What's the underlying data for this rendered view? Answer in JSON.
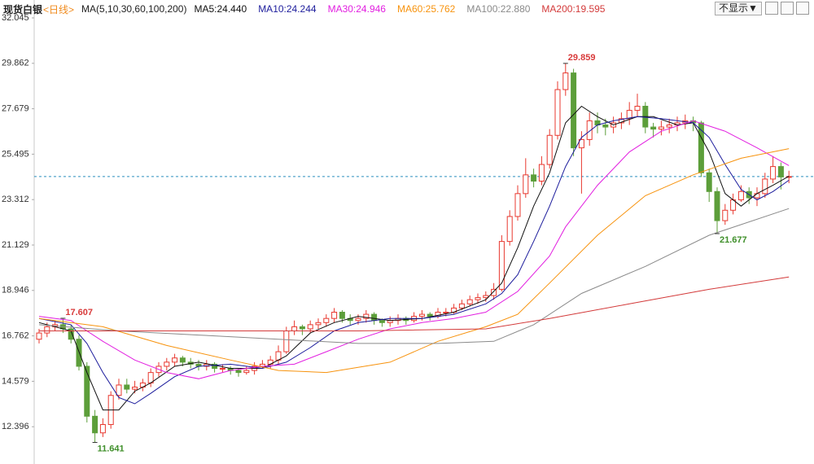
{
  "chart_data": {
    "type": "candlestick",
    "title": "现货白银",
    "period": "<日线>",
    "ma_label": "MA(5,10,30,60,100,200)",
    "button": "不显示▼",
    "ylim": [
      10.76,
      32.045
    ],
    "yticks": [
      32.045,
      29.862,
      27.679,
      25.495,
      23.312,
      21.129,
      18.946,
      16.762,
      14.579,
      12.396
    ],
    "up_color": "#e8382f",
    "down_color": "#5c9e3a",
    "last_price": 24.42,
    "last_price_color": "#2a8fbd",
    "open": [
      16.6,
      16.9,
      17.2,
      17.3,
      17.1,
      16.6,
      15.3,
      12.9,
      12.1,
      12.5,
      13.9,
      14.4,
      14.2,
      14.3,
      14.5,
      15.0,
      15.3,
      15.5,
      15.7,
      15.5,
      15.4,
      15.3,
      15.4,
      15.2,
      15.2,
      15.1,
      15.0,
      15.1,
      15.3,
      15.4,
      15.6,
      16.0,
      17.0,
      17.2,
      17.1,
      17.3,
      17.4,
      17.6,
      17.9,
      17.6,
      17.5,
      17.6,
      17.8,
      17.5,
      17.4,
      17.5,
      17.6,
      17.5,
      17.7,
      17.8,
      17.7,
      17.9,
      17.9,
      18.1,
      18.3,
      18.5,
      18.6,
      18.7,
      19.0,
      21.3,
      22.5,
      23.6,
      24.5,
      24.2,
      25.0,
      26.4,
      28.6,
      29.4,
      25.8,
      26.2,
      27.1,
      26.9,
      26.8,
      27.0,
      27.2,
      27.6,
      27.8,
      26.8,
      26.7,
      26.8,
      26.9,
      27.0,
      27.1,
      27.0,
      24.6,
      23.7,
      22.3,
      22.8,
      23.3,
      23.7,
      23.4,
      23.6,
      24.3,
      24.9,
      24.4
    ],
    "high": [
      17.1,
      17.4,
      17.5,
      17.607,
      17.3,
      16.8,
      15.5,
      13.2,
      12.8,
      14.1,
      14.7,
      14.7,
      14.6,
      14.7,
      15.2,
      15.5,
      15.7,
      15.9,
      15.8,
      15.7,
      15.6,
      15.6,
      15.5,
      15.4,
      15.3,
      15.2,
      15.3,
      15.5,
      15.6,
      15.8,
      16.3,
      17.2,
      17.5,
      17.3,
      17.5,
      17.6,
      17.8,
      18.1,
      18.0,
      17.8,
      17.8,
      18.0,
      17.9,
      17.6,
      17.7,
      17.8,
      17.7,
      17.9,
      18.0,
      17.9,
      18.1,
      18.1,
      18.3,
      18.5,
      18.7,
      18.8,
      18.9,
      19.3,
      21.6,
      22.8,
      24.0,
      25.3,
      24.8,
      25.4,
      26.7,
      29.0,
      29.859,
      29.6,
      26.6,
      27.5,
      27.5,
      27.2,
      27.3,
      27.5,
      28.0,
      28.4,
      28.0,
      27.0,
      27.1,
      27.2,
      27.3,
      27.4,
      27.3,
      27.1,
      24.8,
      23.9,
      23.1,
      23.6,
      24.0,
      23.9,
      23.9,
      24.6,
      25.4,
      25.1,
      24.7
    ],
    "low": [
      16.4,
      16.7,
      17.0,
      16.9,
      16.4,
      15.1,
      12.6,
      11.641,
      11.9,
      12.3,
      13.7,
      14.0,
      14.0,
      14.1,
      14.3,
      14.8,
      15.1,
      15.3,
      15.3,
      15.2,
      15.1,
      15.1,
      15.0,
      15.0,
      14.9,
      14.8,
      14.9,
      14.9,
      15.2,
      15.2,
      15.4,
      15.9,
      16.8,
      16.8,
      16.9,
      17.1,
      17.2,
      17.4,
      17.4,
      17.3,
      17.3,
      17.4,
      17.3,
      17.2,
      17.2,
      17.3,
      17.3,
      17.4,
      17.5,
      17.5,
      17.6,
      17.7,
      17.8,
      18.0,
      18.2,
      18.3,
      18.4,
      18.5,
      18.9,
      21.1,
      22.3,
      23.4,
      23.9,
      24.0,
      24.8,
      26.2,
      28.3,
      25.4,
      23.6,
      25.9,
      26.5,
      26.4,
      26.5,
      26.7,
      26.9,
      27.3,
      26.5,
      26.3,
      26.4,
      26.5,
      26.6,
      26.7,
      26.6,
      24.4,
      23.2,
      21.677,
      22.1,
      22.6,
      23.2,
      23.1,
      23.0,
      23.4,
      24.1,
      23.8,
      24.1
    ],
    "close": [
      16.9,
      17.2,
      17.3,
      17.1,
      16.6,
      15.3,
      12.9,
      12.1,
      12.5,
      13.9,
      14.4,
      14.2,
      14.3,
      14.5,
      15.0,
      15.3,
      15.5,
      15.7,
      15.5,
      15.4,
      15.3,
      15.4,
      15.2,
      15.2,
      15.1,
      15.0,
      15.1,
      15.3,
      15.4,
      15.6,
      16.0,
      17.0,
      17.2,
      17.1,
      17.3,
      17.4,
      17.6,
      17.9,
      17.6,
      17.5,
      17.6,
      17.8,
      17.5,
      17.4,
      17.5,
      17.6,
      17.5,
      17.7,
      17.8,
      17.7,
      17.9,
      17.9,
      18.1,
      18.3,
      18.5,
      18.6,
      18.7,
      19.0,
      21.3,
      22.5,
      23.6,
      24.5,
      24.2,
      25.0,
      26.4,
      28.6,
      29.4,
      25.8,
      26.2,
      27.1,
      26.9,
      26.8,
      27.0,
      27.2,
      27.6,
      27.8,
      26.8,
      26.7,
      26.8,
      26.9,
      27.0,
      27.1,
      27.0,
      24.6,
      23.7,
      22.3,
      22.8,
      23.3,
      23.7,
      23.4,
      23.6,
      24.3,
      24.9,
      24.4,
      24.42
    ],
    "annotations": [
      {
        "index": 66,
        "value": 29.859,
        "color": "#d83a3a"
      },
      {
        "index": 85,
        "value": 21.677,
        "color": "#3f8f2a"
      },
      {
        "index": 7,
        "value": 11.641,
        "color": "#3f8f2a"
      },
      {
        "index": 3,
        "value": 17.607,
        "color": "#d83a3a"
      }
    ],
    "series": [
      {
        "name": "MA5:24.440",
        "color": "#111111",
        "x": [
          0,
          4,
          6,
          8,
          10,
          12,
          14,
          17,
          20,
          24,
          28,
          31,
          34,
          37,
          40,
          44,
          48,
          52,
          56,
          58,
          60,
          62,
          64,
          66,
          68,
          70,
          72,
          75,
          77,
          80,
          82,
          84,
          86,
          88,
          90,
          92,
          94
        ],
        "values": [
          17.4,
          17.0,
          15.0,
          13.2,
          13.2,
          14.1,
          14.5,
          15.3,
          15.5,
          15.2,
          15.2,
          15.8,
          16.9,
          17.4,
          17.7,
          17.5,
          17.6,
          17.9,
          18.5,
          19.3,
          21.0,
          23.0,
          24.6,
          27.0,
          27.8,
          27.3,
          26.9,
          27.3,
          27.3,
          26.9,
          27.0,
          25.6,
          23.6,
          23.0,
          23.6,
          24.0,
          24.44
        ]
      },
      {
        "name": "MA10:24.244",
        "color": "#1c1c9c",
        "x": [
          0,
          4,
          6,
          8,
          10,
          12,
          14,
          17,
          20,
          24,
          28,
          31,
          34,
          37,
          40,
          44,
          48,
          52,
          56,
          58,
          60,
          62,
          64,
          66,
          68,
          70,
          72,
          75,
          78,
          82,
          84,
          86,
          88,
          90,
          92,
          94
        ],
        "values": [
          17.6,
          17.3,
          16.4,
          15.0,
          13.8,
          13.5,
          14.0,
          14.8,
          15.3,
          15.4,
          15.2,
          15.5,
          16.2,
          17.0,
          17.4,
          17.6,
          17.6,
          17.8,
          18.3,
          18.8,
          19.7,
          21.3,
          23.0,
          24.9,
          26.3,
          26.9,
          27.1,
          27.3,
          27.2,
          27.0,
          26.3,
          25.0,
          23.8,
          23.3,
          23.7,
          24.244
        ]
      },
      {
        "name": "MA30:24.946",
        "color": "#e21fe0",
        "x": [
          0,
          4,
          8,
          12,
          16,
          20,
          24,
          28,
          32,
          36,
          40,
          44,
          48,
          52,
          56,
          60,
          64,
          66,
          70,
          74,
          78,
          82,
          86,
          90,
          94
        ],
        "values": [
          17.7,
          17.5,
          16.5,
          15.6,
          15.0,
          14.7,
          15.1,
          15.3,
          15.4,
          16.0,
          16.6,
          17.1,
          17.4,
          17.6,
          17.9,
          18.9,
          20.6,
          22.0,
          24.0,
          25.6,
          26.6,
          27.1,
          26.6,
          25.8,
          24.946
        ]
      },
      {
        "name": "MA60:25.762",
        "color": "#f7930e",
        "x": [
          0,
          8,
          16,
          24,
          30,
          36,
          44,
          50,
          56,
          60,
          64,
          70,
          76,
          82,
          88,
          94
        ],
        "values": [
          17.6,
          17.2,
          16.3,
          15.6,
          15.1,
          15.0,
          15.5,
          16.5,
          17.2,
          17.8,
          19.3,
          21.6,
          23.5,
          24.5,
          25.3,
          25.762
        ]
      },
      {
        "name": "MA100:22.880",
        "color": "#8a8a8a",
        "x": [
          0,
          10,
          20,
          30,
          40,
          50,
          57,
          62,
          68,
          76,
          84,
          94
        ],
        "values": [
          17.3,
          17.0,
          16.8,
          16.6,
          16.4,
          16.4,
          16.5,
          17.3,
          18.8,
          20.1,
          21.6,
          22.88
        ]
      },
      {
        "name": "MA200:19.595",
        "color": "#d33a3a",
        "x": [
          0,
          20,
          40,
          56,
          64,
          74,
          84,
          94
        ],
        "values": [
          17.0,
          17.0,
          17.0,
          17.1,
          17.6,
          18.3,
          19.0,
          19.595
        ]
      }
    ]
  }
}
